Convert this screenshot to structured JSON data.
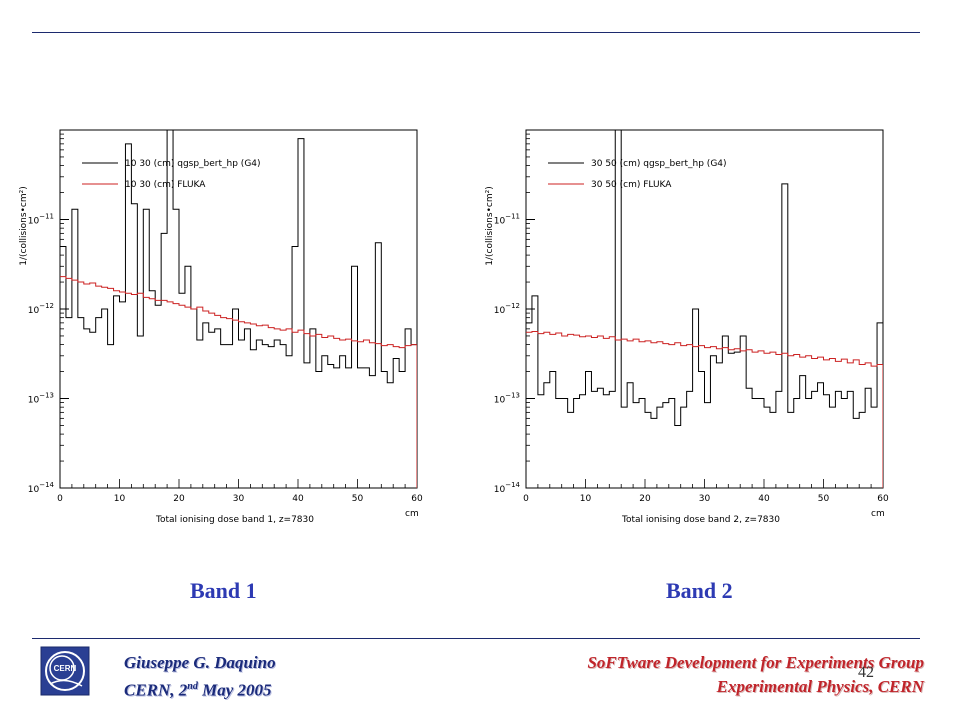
{
  "colors": {
    "accent": "#2d3ab3",
    "footer_left": "#1a2a7a",
    "footer_right": "#c0242a",
    "g4_series": "#000000",
    "fluka_series": "#cc2222"
  },
  "band_labels": [
    "Band 1",
    "Band 2"
  ],
  "footer": {
    "author": "Giuseppe G. Daquino",
    "date_prefix": "CERN, 2",
    "date_sup": "nd",
    "date_suffix": " May 2005",
    "group": "SoFTware Development for Experiments Group",
    "dept": "Experimental Physics, CERN",
    "page_number": "42"
  },
  "logo": {
    "icon": "cern-logo-icon",
    "text": "CERN"
  },
  "chart_data": [
    {
      "type": "line",
      "step": true,
      "xlabel": "Total ionising dose band 1, z=7830",
      "x_unit": "cm",
      "ylabel": "1/(collisions•cm²)",
      "xlim": [
        0,
        60
      ],
      "ylim": [
        1e-14,
        1e-10
      ],
      "yscale": "log",
      "x_ticks": [
        "0",
        "10",
        "20",
        "30",
        "40",
        "50",
        "60"
      ],
      "y_ticks": [
        {
          "base": "10",
          "exp": "−11",
          "value": 1e-11
        },
        {
          "base": "10",
          "exp": "−12",
          "value": 1e-12
        },
        {
          "base": "10",
          "exp": "−13",
          "value": 1e-13
        },
        {
          "base": "10",
          "exp": "−14",
          "value": 1e-14
        }
      ],
      "x_bins": [
        0,
        1,
        2,
        3,
        4,
        5,
        6,
        7,
        8,
        9,
        10,
        11,
        12,
        13,
        14,
        15,
        16,
        17,
        18,
        19,
        20,
        21,
        22,
        23,
        24,
        25,
        26,
        27,
        28,
        29,
        30,
        31,
        32,
        33,
        34,
        35,
        36,
        37,
        38,
        39,
        40,
        41,
        42,
        43,
        44,
        45,
        46,
        47,
        48,
        49,
        50,
        51,
        52,
        53,
        54,
        55,
        56,
        57,
        58,
        59,
        60
      ],
      "series": [
        {
          "name": "10 30 (cm) qgsp_bert_hp (G4)",
          "color": "#000000",
          "values": [
            5e-12,
            8e-13,
            1.3e-11,
            8e-13,
            6e-13,
            5.5e-13,
            8e-13,
            1e-12,
            4e-13,
            1.4e-12,
            1.2e-12,
            7e-11,
            1.5e-11,
            5e-13,
            1.3e-11,
            1.6e-12,
            1.1e-12,
            7e-12,
            1e-10,
            1.3e-11,
            1.5e-12,
            3e-12,
            1e-12,
            4.5e-13,
            7e-13,
            5.5e-13,
            6e-13,
            4e-13,
            4e-13,
            1e-12,
            4.5e-13,
            6e-13,
            3.5e-13,
            4.5e-13,
            4e-13,
            3.8e-13,
            4.5e-13,
            4e-13,
            3e-13,
            5e-12,
            8e-11,
            2.5e-13,
            6e-13,
            2e-13,
            3e-13,
            2.4e-13,
            2.2e-13,
            3e-13,
            2.2e-13,
            3e-12,
            2.2e-13,
            2.2e-13,
            1.8e-13,
            5.5e-12,
            2e-13,
            1.5e-13,
            2.8e-13,
            2e-13,
            6e-13,
            4e-13
          ]
        },
        {
          "name": "10 30 (cm) FLUKA",
          "color": "#cc2222",
          "values": [
            2.3e-12,
            2.2e-12,
            2.1e-12,
            2e-12,
            1.9e-12,
            1.95e-12,
            1.8e-12,
            1.75e-12,
            1.7e-12,
            1.6e-12,
            1.55e-12,
            1.5e-12,
            1.45e-12,
            1.5e-12,
            1.35e-12,
            1.3e-12,
            1.25e-12,
            1.25e-12,
            1.2e-12,
            1.15e-12,
            1.1e-12,
            1.05e-12,
            1e-12,
            1.05e-12,
            9.5e-13,
            9e-13,
            8.5e-13,
            8e-13,
            7.8e-13,
            7.5e-13,
            7.2e-13,
            7e-13,
            6.8e-13,
            6.5e-13,
            6.6e-13,
            6.2e-13,
            6e-13,
            5.8e-13,
            6e-13,
            5.5e-13,
            5.8e-13,
            5.3e-13,
            5e-13,
            5.2e-13,
            4.8e-13,
            5e-13,
            4.7e-13,
            4.5e-13,
            4.6e-13,
            4.4e-13,
            4.3e-13,
            4.5e-13,
            4.2e-13,
            4.1e-13,
            3.9e-13,
            4e-13,
            3.8e-13,
            3.7e-13,
            3.9e-13,
            4e-13
          ]
        }
      ]
    },
    {
      "type": "line",
      "step": true,
      "xlabel": "Total ionising dose band 2, z=7830",
      "x_unit": "cm",
      "ylabel": "1/(collisions•cm²)",
      "xlim": [
        0,
        60
      ],
      "ylim": [
        1e-14,
        1e-10
      ],
      "yscale": "log",
      "x_ticks": [
        "0",
        "10",
        "20",
        "30",
        "40",
        "50",
        "60"
      ],
      "y_ticks": [
        {
          "base": "10",
          "exp": "−11",
          "value": 1e-11
        },
        {
          "base": "10",
          "exp": "−12",
          "value": 1e-12
        },
        {
          "base": "10",
          "exp": "−13",
          "value": 1e-13
        },
        {
          "base": "10",
          "exp": "−14",
          "value": 1e-14
        }
      ],
      "x_bins": [
        0,
        1,
        2,
        3,
        4,
        5,
        6,
        7,
        8,
        9,
        10,
        11,
        12,
        13,
        14,
        15,
        16,
        17,
        18,
        19,
        20,
        21,
        22,
        23,
        24,
        25,
        26,
        27,
        28,
        29,
        30,
        31,
        32,
        33,
        34,
        35,
        36,
        37,
        38,
        39,
        40,
        41,
        42,
        43,
        44,
        45,
        46,
        47,
        48,
        49,
        50,
        51,
        52,
        53,
        54,
        55,
        56,
        57,
        58,
        59,
        60
      ],
      "series": [
        {
          "name": "30 50 (cm) qgsp_bert_hp (G4)",
          "color": "#000000",
          "values": [
            7e-13,
            1.4e-12,
            1.1e-13,
            1.5e-13,
            2e-13,
            1e-13,
            1e-13,
            7e-14,
            1e-13,
            1.1e-13,
            2e-13,
            1.2e-13,
            1.3e-13,
            1.1e-13,
            1.2e-13,
            1e-10,
            8e-14,
            1.5e-13,
            9e-14,
            1e-13,
            7e-14,
            6e-14,
            8e-14,
            9e-14,
            1e-13,
            5e-14,
            8e-14,
            1.2e-13,
            1e-12,
            2e-13,
            9e-14,
            3e-13,
            2.5e-13,
            5e-13,
            3.2e-13,
            3.3e-13,
            5e-13,
            1.3e-13,
            1e-13,
            1e-13,
            8e-14,
            7e-14,
            1.2e-13,
            2.5e-11,
            7e-14,
            1e-13,
            1.8e-13,
            1e-13,
            1.2e-13,
            1.5e-13,
            1.1e-13,
            8e-14,
            1.2e-13,
            1e-13,
            1.2e-13,
            6e-14,
            7e-14,
            1.3e-13,
            8e-14,
            7e-13
          ]
        },
        {
          "name": "30 50 (cm) FLUKA",
          "color": "#cc2222",
          "values": [
            5.5e-13,
            5.6e-13,
            5.3e-13,
            5.5e-13,
            5.2e-13,
            5.4e-13,
            5e-13,
            5.2e-13,
            5.1e-13,
            4.9e-13,
            5e-13,
            4.8e-13,
            5e-13,
            4.7e-13,
            4.9e-13,
            4.5e-13,
            4.6e-13,
            4.4e-13,
            4.6e-13,
            4.3e-13,
            4.4e-13,
            4.2e-13,
            4.3e-13,
            4.1e-13,
            4e-13,
            4.2e-13,
            3.9e-13,
            4e-13,
            3.8e-13,
            3.9e-13,
            3.7e-13,
            3.8e-13,
            3.6e-13,
            3.7e-13,
            3.5e-13,
            3.6e-13,
            3.4e-13,
            3.5e-13,
            3.3e-13,
            3.4e-13,
            3.2e-13,
            3.3e-13,
            3.1e-13,
            3.2e-13,
            3e-13,
            3.1e-13,
            2.9e-13,
            3e-13,
            2.8e-13,
            2.9e-13,
            2.7e-13,
            2.8e-13,
            2.6e-13,
            2.75e-13,
            2.5e-13,
            2.7e-13,
            2.4e-13,
            2.5e-13,
            2.3e-13,
            2.4e-13
          ]
        }
      ]
    }
  ]
}
